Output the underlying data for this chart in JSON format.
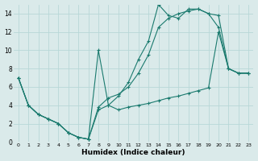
{
  "xlabel": "Humidex (Indice chaleur)",
  "background_color": "#daeaea",
  "grid_color": "#b8d8d8",
  "line_color": "#1a7a6e",
  "xlim": [
    -0.5,
    23.5
  ],
  "ylim": [
    0,
    15
  ],
  "xticks": [
    0,
    1,
    2,
    3,
    4,
    5,
    6,
    7,
    8,
    9,
    10,
    11,
    12,
    13,
    14,
    15,
    16,
    17,
    18,
    19,
    20,
    21,
    22,
    23
  ],
  "yticks": [
    0,
    2,
    4,
    6,
    8,
    10,
    12,
    14
  ],
  "line1_x": [
    0,
    1,
    2,
    3,
    4,
    5,
    6,
    7,
    8,
    9,
    10,
    11,
    12,
    13,
    14,
    15,
    16,
    17,
    18,
    19,
    20,
    21,
    22,
    23
  ],
  "line1_y": [
    7.0,
    4.0,
    3.0,
    2.5,
    2.0,
    1.0,
    0.5,
    0.3,
    10.0,
    4.0,
    3.5,
    3.8,
    4.0,
    4.2,
    4.5,
    4.8,
    5.0,
    5.3,
    5.6,
    5.9,
    12.0,
    8.0,
    7.5,
    7.5
  ],
  "line2_x": [
    0,
    1,
    2,
    3,
    4,
    5,
    6,
    7,
    8,
    9,
    10,
    11,
    12,
    13,
    14,
    15,
    16,
    17,
    18,
    19,
    20,
    21,
    22,
    23
  ],
  "line2_y": [
    7.0,
    4.0,
    3.0,
    2.5,
    2.0,
    1.0,
    0.5,
    0.3,
    3.5,
    4.0,
    5.0,
    6.5,
    9.0,
    11.0,
    15.0,
    13.8,
    13.5,
    14.5,
    14.5,
    14.0,
    13.8,
    8.0,
    7.5,
    7.5
  ],
  "line3_x": [
    0,
    1,
    2,
    3,
    4,
    5,
    6,
    7,
    8,
    9,
    10,
    11,
    12,
    13,
    14,
    15,
    16,
    17,
    18,
    19,
    20,
    21,
    22,
    23
  ],
  "line3_y": [
    7.0,
    4.0,
    3.0,
    2.5,
    2.0,
    1.0,
    0.5,
    0.3,
    3.8,
    4.8,
    5.2,
    6.0,
    7.5,
    9.5,
    12.5,
    13.5,
    14.0,
    14.3,
    14.5,
    14.0,
    12.5,
    8.0,
    7.5,
    7.5
  ]
}
